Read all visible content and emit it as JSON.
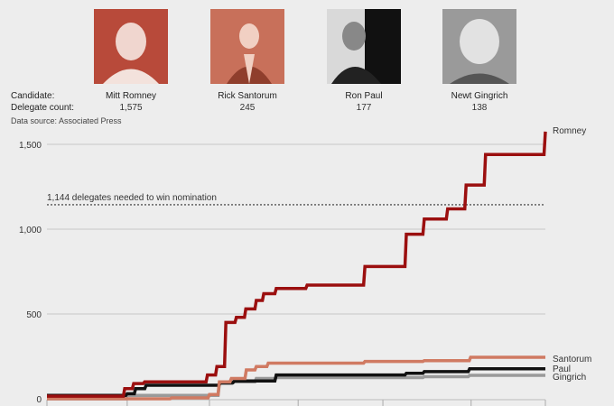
{
  "header": {
    "candidate_label": "Candidate:",
    "delegate_label": "Delegate count:",
    "source": "Data source: Associated Press",
    "candidates": [
      {
        "name": "Mitt Romney",
        "count": "1,575",
        "photo_tint": "#a8301f"
      },
      {
        "name": "Rick Santorum",
        "count": "245",
        "photo_tint": "#c8705a"
      },
      {
        "name": "Ron Paul",
        "count": "177",
        "photo_tint": "#333333"
      },
      {
        "name": "Newt Gingrich",
        "count": "138",
        "photo_tint": "#8a8a8a"
      }
    ]
  },
  "chart_data": {
    "type": "line",
    "step": true,
    "ylim": [
      0,
      1600
    ],
    "yticks": [
      {
        "value": 0,
        "label": "0"
      },
      {
        "value": 500,
        "label": "500"
      },
      {
        "value": 1000,
        "label": "1,000"
      },
      {
        "value": 1500,
        "label": "1,500"
      }
    ],
    "xlim": [
      0,
      100
    ],
    "xticks": [
      0,
      16.1,
      32.6,
      50.4,
      67.4,
      85.1,
      100
    ],
    "grid": true,
    "threshold": {
      "value": 1144,
      "label": "1,144 delegates needed to win nomination"
    },
    "series": [
      {
        "name": "Romney",
        "color": "#9b0f0f",
        "points": [
          [
            0,
            15
          ],
          [
            15.6,
            60
          ],
          [
            17.4,
            90
          ],
          [
            19.6,
            100
          ],
          [
            32.2,
            140
          ],
          [
            34.1,
            190
          ],
          [
            35.9,
            450
          ],
          [
            38,
            480
          ],
          [
            39.9,
            530
          ],
          [
            42,
            580
          ],
          [
            43.5,
            620
          ],
          [
            46,
            650
          ],
          [
            52.2,
            670
          ],
          [
            63.8,
            780
          ],
          [
            72.1,
            970
          ],
          [
            75.7,
            1060
          ],
          [
            80.4,
            1120
          ],
          [
            84.1,
            1260
          ],
          [
            88,
            1440
          ],
          [
            100,
            1575
          ]
        ]
      },
      {
        "name": "Santorum",
        "color": "#d07a62",
        "points": [
          [
            0,
            0
          ],
          [
            25,
            5
          ],
          [
            32.6,
            25
          ],
          [
            34.6,
            100
          ],
          [
            37,
            120
          ],
          [
            40,
            170
          ],
          [
            42,
            190
          ],
          [
            44.4,
            210
          ],
          [
            63.8,
            220
          ],
          [
            75.7,
            225
          ],
          [
            85,
            245
          ],
          [
            100,
            245
          ]
        ]
      },
      {
        "name": "Paul",
        "color": "#111111",
        "points": [
          [
            0,
            20
          ],
          [
            16.1,
            30
          ],
          [
            17.8,
            60
          ],
          [
            19.9,
            80
          ],
          [
            34.8,
            95
          ],
          [
            37.6,
            105
          ],
          [
            46,
            140
          ],
          [
            72.1,
            150
          ],
          [
            75.7,
            160
          ],
          [
            84.8,
            177
          ],
          [
            100,
            177
          ]
        ]
      },
      {
        "name": "Gingrich",
        "color": "#9a9a9a",
        "points": [
          [
            0,
            0
          ],
          [
            16.1,
            20
          ],
          [
            32.6,
            20
          ],
          [
            34.6,
            90
          ],
          [
            37.4,
            100
          ],
          [
            42,
            120
          ],
          [
            46,
            125
          ],
          [
            75.7,
            130
          ],
          [
            84.8,
            138
          ],
          [
            100,
            138
          ]
        ]
      }
    ]
  }
}
